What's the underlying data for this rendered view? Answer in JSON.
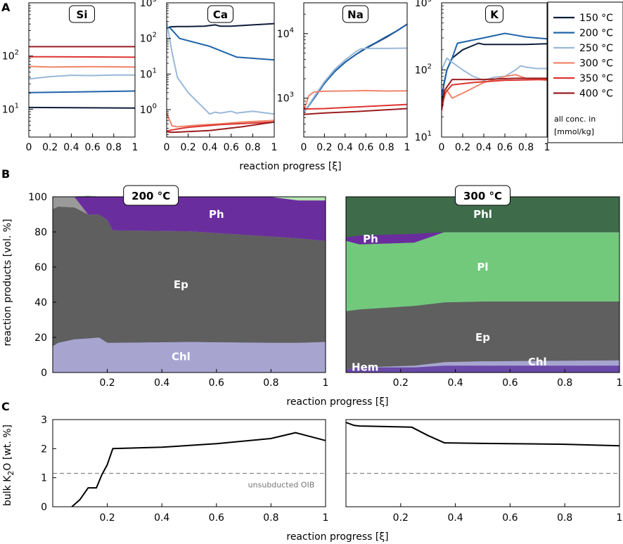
{
  "panels": {
    "a": "A",
    "b": "B",
    "c": "C"
  },
  "colors": {
    "150 °C": "#0d1e3a",
    "200 °C": "#1f64aa",
    "250 °C": "#9ab8d8",
    "300 °C": "#f0846a",
    "350 °C": "#dd3530",
    "400 °C": "#9b1d20",
    "Ph": "#6a2d9e",
    "Ep": "#5f5f5f",
    "Chl": "#a7a5d0",
    "Phl": "#3e6b4a",
    "Pl": "#72c97c",
    "Hem": "#6a49a8",
    "lightgray": "#9a9a9a",
    "lightgreen": "#b6e4b2"
  },
  "legend": {
    "items": [
      "150 °C",
      "200 °C",
      "250 °C",
      "300 °C",
      "350 °C",
      "400 °C"
    ],
    "note_line1": "all conc. in",
    "note_line2": "[mmol/kg]"
  },
  "chart_data": [
    {
      "type": "line",
      "title": "Si",
      "yscale": "log",
      "ylim": [
        3,
        1000
      ],
      "xlim": [
        0,
        1
      ],
      "yticks": [
        {
          "v": 10,
          "label": "10",
          "exp": "1"
        },
        {
          "v": 100,
          "label": "10",
          "exp": "2"
        }
      ],
      "xticks": [
        "0",
        "0.2",
        "0.4",
        "0.6",
        "0.8",
        "1"
      ],
      "series": [
        {
          "name": "150 °C",
          "x": [
            0,
            1
          ],
          "y": [
            10.8,
            10.5
          ]
        },
        {
          "name": "200 °C",
          "x": [
            0,
            1
          ],
          "y": [
            20.5,
            22
          ]
        },
        {
          "name": "250 °C",
          "x": [
            0,
            0.2,
            0.4,
            0.6,
            0.8,
            1
          ],
          "y": [
            37,
            41,
            43.5,
            43,
            44,
            44
          ]
        },
        {
          "name": "300 °C",
          "x": [
            0,
            0.2,
            0.6,
            1
          ],
          "y": [
            64,
            62,
            63,
            62
          ]
        },
        {
          "name": "350 °C",
          "x": [
            0,
            0.2,
            0.6,
            1
          ],
          "y": [
            97,
            97,
            96,
            95
          ]
        },
        {
          "name": "400 °C",
          "x": [
            0,
            1
          ],
          "y": [
            150,
            150
          ]
        }
      ]
    },
    {
      "type": "line",
      "title": "Ca",
      "yscale": "log",
      "ylim": [
        0.17,
        1000
      ],
      "xlim": [
        0,
        1
      ],
      "yticks": [
        {
          "v": 1,
          "label": "10",
          "exp": "0"
        },
        {
          "v": 10,
          "label": "10",
          "exp": "1"
        },
        {
          "v": 100,
          "label": "10",
          "exp": "2"
        },
        {
          "v": 1000,
          "label": "10",
          "exp": "3"
        }
      ],
      "xticks": [
        "0",
        "0.2",
        "0.4",
        "0.6",
        "0.8",
        "1"
      ],
      "series": [
        {
          "name": "150 °C",
          "x": [
            0,
            0.03,
            0.1,
            0.2,
            0.35,
            0.45,
            0.5,
            0.6,
            0.8,
            1
          ],
          "y": [
            190,
            210,
            215,
            215,
            220,
            240,
            220,
            220,
            240,
            260
          ]
        },
        {
          "name": "200 °C",
          "x": [
            0,
            0.03,
            0.12,
            0.4,
            0.65,
            1
          ],
          "y": [
            200,
            200,
            100,
            60,
            30,
            25
          ]
        },
        {
          "name": "250 °C",
          "x": [
            0,
            0.05,
            0.1,
            0.2,
            0.3,
            0.4,
            0.45,
            0.5,
            0.6,
            0.65,
            0.8,
            1
          ],
          "y": [
            300,
            40,
            8,
            3,
            1.5,
            0.75,
            0.85,
            0.8,
            0.9,
            0.8,
            0.9,
            0.75
          ]
        },
        {
          "name": "300 °C",
          "x": [
            0,
            0.05,
            0.1,
            0.3,
            0.5,
            0.7,
            1
          ],
          "y": [
            0.8,
            0.35,
            0.33,
            0.37,
            0.4,
            0.45,
            0.5
          ]
        },
        {
          "name": "350 °C",
          "x": [
            0,
            0.05,
            0.2,
            0.5,
            1
          ],
          "y": [
            0.25,
            0.27,
            0.32,
            0.38,
            0.45
          ]
        },
        {
          "name": "400 °C",
          "x": [
            0,
            0.05,
            0.4,
            0.7,
            1
          ],
          "y": [
            0.24,
            0.23,
            0.26,
            0.33,
            0.45
          ]
        }
      ]
    },
    {
      "type": "line",
      "title": "Na",
      "yscale": "log",
      "ylim": [
        250,
        30000
      ],
      "xlim": [
        0,
        1
      ],
      "yticks": [
        {
          "v": 1000,
          "label": "10",
          "exp": "3"
        },
        {
          "v": 10000,
          "label": "10",
          "exp": "4"
        }
      ],
      "xticks": [
        "0",
        "0.2",
        "0.4",
        "0.6",
        "0.8",
        "1"
      ],
      "series": [
        {
          "name": "150 °C",
          "x": [
            0,
            0.1,
            0.2,
            0.3,
            0.4,
            0.5,
            0.6,
            0.7,
            0.8,
            0.9,
            1
          ],
          "y": [
            600,
            1000,
            1700,
            2600,
            3600,
            4700,
            5900,
            7200,
            8800,
            11000,
            14000
          ]
        },
        {
          "name": "200 °C",
          "x": [
            0,
            0.1,
            0.2,
            0.3,
            0.4,
            0.5,
            0.6,
            0.7,
            0.8,
            0.9,
            1
          ],
          "y": [
            600,
            1000,
            1700,
            2600,
            3600,
            4700,
            6000,
            7300,
            9000,
            11000,
            14000
          ]
        },
        {
          "name": "250 °C",
          "x": [
            0,
            0.1,
            0.2,
            0.3,
            0.4,
            0.5,
            0.55,
            0.6,
            0.8,
            1
          ],
          "y": [
            600,
            1050,
            1800,
            2800,
            3900,
            5200,
            5800,
            5900,
            5900,
            5950
          ]
        },
        {
          "name": "300 °C",
          "x": [
            0,
            0.05,
            0.1,
            0.2,
            0.5,
            0.6,
            0.8,
            1
          ],
          "y": [
            650,
            1100,
            1250,
            1280,
            1300,
            1310,
            1290,
            1300
          ]
        },
        {
          "name": "350 °C",
          "x": [
            0,
            0.2,
            0.5,
            1
          ],
          "y": [
            680,
            690,
            730,
            800
          ]
        },
        {
          "name": "400 °C",
          "x": [
            0,
            0.2,
            0.5,
            1
          ],
          "y": [
            560,
            590,
            620,
            690
          ]
        }
      ]
    },
    {
      "type": "line",
      "title": "K",
      "yscale": "log",
      "ylim": [
        10,
        1000
      ],
      "xlim": [
        0,
        1
      ],
      "yticks": [
        {
          "v": 10,
          "label": "10",
          "exp": "1"
        },
        {
          "v": 100,
          "label": "10",
          "exp": "2"
        },
        {
          "v": 1000,
          "label": "10",
          "exp": "3"
        }
      ],
      "xticks": [
        "0",
        "0.2",
        "0.4",
        "0.6",
        "0.8",
        "1"
      ],
      "series": [
        {
          "name": "150 °C",
          "x": [
            0,
            0.02,
            0.05,
            0.1,
            0.2,
            0.35,
            0.4,
            0.6,
            0.8,
            1
          ],
          "y": [
            30,
            60,
            100,
            150,
            200,
            250,
            240,
            240,
            240,
            245
          ]
        },
        {
          "name": "200 °C",
          "x": [
            0,
            0.05,
            0.1,
            0.15,
            0.4,
            0.6,
            0.65,
            0.8,
            1
          ],
          "y": [
            40,
            100,
            150,
            250,
            300,
            350,
            340,
            310,
            290
          ]
        },
        {
          "name": "250 °C",
          "x": [
            0,
            0.05,
            0.1,
            0.2,
            0.3,
            0.4,
            0.5,
            0.6,
            0.7,
            0.75,
            0.8,
            0.9,
            1
          ],
          "y": [
            100,
            150,
            130,
            100,
            80,
            70,
            78,
            80,
            100,
            115,
            110,
            105,
            105
          ]
        },
        {
          "name": "300 °C",
          "x": [
            0,
            0.05,
            0.1,
            0.2,
            0.4,
            0.6,
            0.7,
            0.8,
            1
          ],
          "y": [
            30,
            50,
            38,
            45,
            65,
            80,
            85,
            75,
            70
          ]
        },
        {
          "name": "350 °C",
          "x": [
            0,
            0.03,
            0.1,
            0.3,
            0.6,
            1
          ],
          "y": [
            25,
            45,
            60,
            65,
            70,
            72
          ]
        },
        {
          "name": "400 °C",
          "x": [
            0,
            0.03,
            0.1,
            0.4,
            0.7,
            1
          ],
          "y": [
            25,
            50,
            72,
            72,
            75,
            75
          ]
        }
      ]
    },
    {
      "type": "area",
      "title": "200 °C",
      "ylabel": "reaction products [vol. %]",
      "ylim": [
        0,
        100
      ],
      "xlim": [
        0,
        1
      ],
      "yticks": [
        "0",
        "20",
        "40",
        "60",
        "80",
        "100"
      ],
      "xticks": [
        "",
        "0.2",
        "0.4",
        "0.6",
        "0.8",
        "1"
      ],
      "x": [
        0,
        0.02,
        0.08,
        0.13,
        0.17,
        0.2,
        0.22,
        0.5,
        0.8,
        0.9,
        1
      ],
      "series": [
        {
          "name": "Chl",
          "label": "Chl",
          "values": [
            15,
            17,
            19,
            19.5,
            20,
            17,
            17,
            17.5,
            17,
            17,
            17.5
          ]
        },
        {
          "name": "Ep",
          "label": "Ep",
          "values": [
            78,
            77.5,
            75,
            70.5,
            70,
            70,
            64,
            63,
            60.5,
            59.5,
            57.5
          ]
        },
        {
          "name": "lightgray",
          "label": "",
          "values": [
            7,
            5.5,
            6,
            0,
            0,
            0,
            0,
            0,
            0,
            0,
            0
          ]
        },
        {
          "name": "Ph",
          "label": "Ph",
          "values": [
            0,
            0,
            0,
            10.5,
            10,
            13,
            19,
            19.5,
            22.5,
            21.5,
            23
          ]
        },
        {
          "name": "lightgreen",
          "label": "",
          "values": [
            0,
            0,
            0,
            0,
            0,
            0,
            0,
            0,
            0,
            2,
            2
          ]
        }
      ]
    },
    {
      "type": "area",
      "title": "300 °C",
      "ylim": [
        0,
        100
      ],
      "xlim": [
        0,
        1
      ],
      "yticks": [],
      "xticks": [
        "",
        "0.2",
        "0.4",
        "0.6",
        "0.8",
        "1"
      ],
      "x": [
        0,
        0.05,
        0.25,
        0.36,
        0.5,
        1
      ],
      "series": [
        {
          "name": "Hem",
          "label": "Hem",
          "values": [
            2,
            3,
            3,
            4,
            4,
            4
          ]
        },
        {
          "name": "Chl",
          "label": "Chl",
          "values": [
            0,
            0,
            1,
            2,
            2.5,
            3
          ]
        },
        {
          "name": "Ep",
          "label": "Ep",
          "values": [
            33,
            33,
            34,
            34,
            34,
            33.5
          ]
        },
        {
          "name": "Pl",
          "label": "Pl",
          "values": [
            40,
            37,
            36,
            40,
            39.5,
            39.5
          ]
        },
        {
          "name": "Ph",
          "label": "Ph",
          "values": [
            2,
            5,
            5,
            0,
            0,
            0
          ]
        },
        {
          "name": "Phl",
          "label": "Phl",
          "values": [
            23,
            22,
            21,
            20,
            20,
            20
          ]
        }
      ]
    },
    {
      "type": "line",
      "ylabel": "bulk K2O [wt. %]",
      "ylim": [
        0,
        3
      ],
      "xlim": [
        0,
        1
      ],
      "yticks": [
        "0",
        "1",
        "2",
        "3"
      ],
      "xticks": [
        "",
        "0.2",
        "0.4",
        "0.6",
        "0.8",
        "1"
      ],
      "reference": {
        "label": "unsubducted OIB",
        "value": 1.15
      },
      "series": [
        {
          "name": "200 °C",
          "x": [
            0.07,
            0.1,
            0.13,
            0.16,
            0.18,
            0.2,
            0.22,
            0.4,
            0.6,
            0.8,
            0.89,
            0.93,
            1
          ],
          "y": [
            0,
            0.25,
            0.65,
            0.65,
            1.1,
            1.45,
            2.0,
            2.05,
            2.17,
            2.35,
            2.55,
            2.45,
            2.28
          ]
        }
      ]
    },
    {
      "type": "line",
      "ylim": [
        0,
        3
      ],
      "xlim": [
        0,
        1
      ],
      "yticks": [],
      "xticks": [
        "",
        "0.2",
        "0.4",
        "0.6",
        "0.8",
        "1"
      ],
      "reference": {
        "label": "",
        "value": 1.15
      },
      "series": [
        {
          "name": "300 °C",
          "x": [
            0,
            0.03,
            0.05,
            0.1,
            0.24,
            0.3,
            0.36,
            0.5,
            0.8,
            1
          ],
          "y": [
            2.9,
            2.8,
            2.78,
            2.77,
            2.74,
            2.45,
            2.2,
            2.18,
            2.15,
            2.1
          ]
        }
      ]
    }
  ],
  "axis_titles": {
    "a_x": "reaction progress [ξ]",
    "b_x": "reaction progress [ξ]",
    "c_x": "reaction progress [ξ]",
    "b_y": "reaction products [vol. %]",
    "c_y_pre": "bulk K",
    "c_y_sub": "2",
    "c_y_post": "O [wt. %]"
  }
}
